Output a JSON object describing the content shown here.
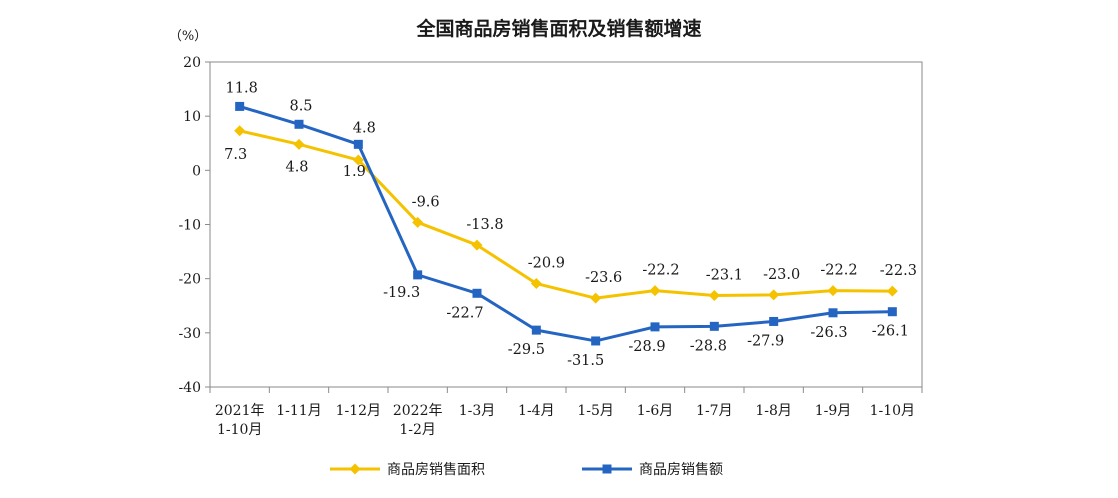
{
  "chart_data": {
    "type": "line",
    "title": "全国商品房销售面积及销售额增速",
    "ylabel": "（%）",
    "xlabel": "",
    "ylim": [
      -40,
      20
    ],
    "yticks": [
      20,
      10,
      0,
      -10,
      -20,
      -30,
      -40
    ],
    "grid": false,
    "legend_position": "bottom-center",
    "categories": [
      [
        "2021年",
        "1-10月"
      ],
      [
        "1-11月"
      ],
      [
        "1-12月"
      ],
      [
        "2022年",
        "1-2月"
      ],
      [
        "1-3月"
      ],
      [
        "1-4月"
      ],
      [
        "1-5月"
      ],
      [
        "1-6月"
      ],
      [
        "1-7月"
      ],
      [
        "1-8月"
      ],
      [
        "1-9月"
      ],
      [
        "1-10月"
      ]
    ],
    "series": [
      {
        "name": "商品房销售面积",
        "color": "#f5c200",
        "marker": "diamond",
        "values": [
          7.3,
          4.8,
          1.9,
          -9.6,
          -13.8,
          -20.9,
          -23.6,
          -22.2,
          -23.1,
          -23.0,
          -22.2,
          -22.3
        ],
        "labels": [
          "7.3",
          "4.8",
          "1.9",
          "-9.6",
          "-13.8",
          "-20.9",
          "-23.6",
          "-22.2",
          "-23.1",
          "-23.0",
          "-22.2",
          "-22.3"
        ]
      },
      {
        "name": "商品房销售额",
        "color": "#2565c2",
        "marker": "square",
        "values": [
          11.8,
          8.5,
          4.8,
          -19.3,
          -22.7,
          -29.5,
          -31.5,
          -28.9,
          -28.8,
          -27.9,
          -26.3,
          -26.1
        ],
        "labels": [
          "11.8",
          "8.5",
          "4.8",
          "-19.3",
          "-22.7",
          "-29.5",
          "-31.5",
          "-28.9",
          "-28.8",
          "-27.9",
          "-26.3",
          "-26.1"
        ]
      }
    ]
  }
}
